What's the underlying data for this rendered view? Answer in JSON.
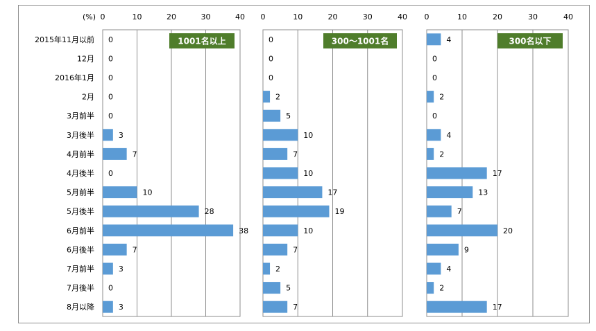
{
  "chart_data": [
    {
      "type": "bar",
      "orientation": "horizontal",
      "title": "1001名以上",
      "title_color": "#4f7d2b",
      "unit_label": "(%)",
      "xlim": [
        0,
        40
      ],
      "ticks": [
        0,
        10,
        20,
        30,
        40
      ],
      "grid": true,
      "bar_color": "#5b9bd5",
      "categories": [
        "2015年11月以前",
        "12月",
        "2016年1月",
        "2月",
        "3月前半",
        "3月後半",
        "4月前半",
        "4月後半",
        "5月前半",
        "5月後半",
        "6月前半",
        "6月後半",
        "7月前半",
        "7月後半",
        "8月以降"
      ],
      "values": [
        0,
        0,
        0,
        0,
        0,
        3,
        7,
        0,
        10,
        28,
        38,
        7,
        3,
        0,
        3
      ]
    },
    {
      "type": "bar",
      "orientation": "horizontal",
      "title": "300～1001名",
      "title_color": "#4f7d2b",
      "xlim": [
        0,
        40
      ],
      "ticks": [
        0,
        10,
        20,
        30,
        40
      ],
      "grid": true,
      "bar_color": "#5b9bd5",
      "values": [
        0,
        0,
        0,
        2,
        5,
        10,
        7,
        10,
        17,
        19,
        10,
        7,
        2,
        5,
        7
      ]
    },
    {
      "type": "bar",
      "orientation": "horizontal",
      "title": "300名以下",
      "title_color": "#4f7d2b",
      "xlim": [
        0,
        40
      ],
      "ticks": [
        0,
        10,
        20,
        30,
        40
      ],
      "grid": true,
      "bar_color": "#5b9bd5",
      "values": [
        4,
        0,
        0,
        2,
        0,
        4,
        2,
        17,
        13,
        7,
        20,
        9,
        4,
        2,
        17
      ]
    }
  ]
}
